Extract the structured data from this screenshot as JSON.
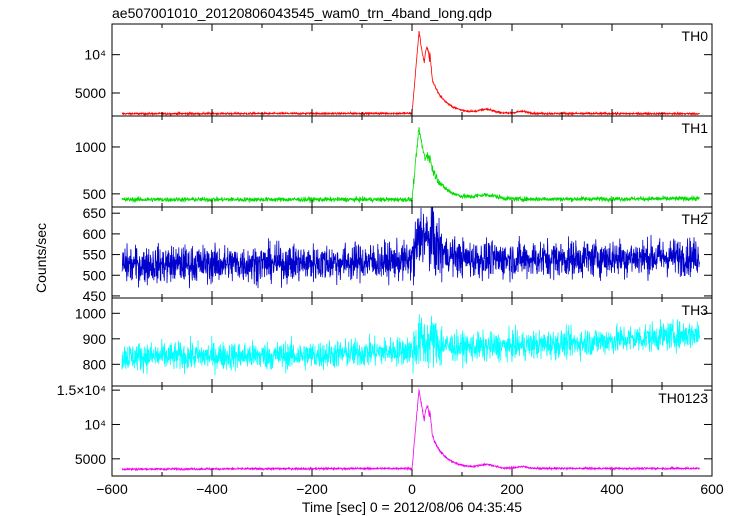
{
  "chart_data": {
    "type": "line",
    "title": "ae507001010_20120806043545_wam0_trn_4band_long.qdp",
    "xlabel": "Time [sec] 0 = 2012/08/06 04:35:45",
    "ylabel": "Counts/sec",
    "xlim": [
      -600,
      600
    ],
    "xticks": [
      -600,
      -400,
      -200,
      0,
      200,
      400,
      600
    ],
    "xtick_labels": [
      "−600",
      "−400",
      "−200",
      "0",
      "200",
      "400",
      "600"
    ],
    "data_range": [
      -580,
      575
    ],
    "panels": [
      {
        "name": "TH0",
        "color": "#ff0000",
        "ylim": [
          2000,
          14000
        ],
        "yticks": [
          5000,
          10000
        ],
        "ytick_labels": [
          "5000",
          "10⁴"
        ],
        "baseline": [
          [
            -580,
            2300
          ],
          [
            0,
            2350
          ],
          [
            575,
            2300
          ]
        ],
        "noise": 90,
        "peak": {
          "t": 14,
          "height": 10700
        },
        "tail": [
          {
            "t": 30,
            "height": 8500
          },
          {
            "t": 55,
            "height": 1400
          }
        ],
        "bumps": [
          {
            "t": 150,
            "height": 450,
            "width": 15
          },
          {
            "t": 220,
            "height": 250,
            "width": 12
          }
        ]
      },
      {
        "name": "TH1",
        "color": "#00dd00",
        "ylim": [
          360,
          1330
        ],
        "yticks": [
          500,
          1000
        ],
        "ytick_labels": [
          "500",
          "1000"
        ],
        "baseline": [
          [
            -580,
            440
          ],
          [
            0,
            440
          ],
          [
            575,
            450
          ]
        ],
        "noise": 18,
        "peak": {
          "t": 14,
          "height": 760
        },
        "tail": [
          {
            "t": 30,
            "height": 480
          },
          {
            "t": 55,
            "height": 120
          }
        ],
        "bumps": [
          {
            "t": 150,
            "height": 40,
            "width": 20
          }
        ]
      },
      {
        "name": "TH2",
        "color": "#0000cc",
        "ylim": [
          445,
          665
        ],
        "yticks": [
          450,
          500,
          550,
          600,
          650
        ],
        "ytick_labels": [
          "450",
          "500",
          "550",
          "600",
          "650"
        ],
        "baseline": [
          [
            -580,
            525
          ],
          [
            -200,
            530
          ],
          [
            0,
            535
          ],
          [
            575,
            545
          ]
        ],
        "noise": 32,
        "peak": {
          "t": 20,
          "height": 75
        },
        "tail": [
          {
            "t": 40,
            "height": 40
          },
          {
            "t": 70,
            "height": 20
          }
        ],
        "bumps": []
      },
      {
        "name": "TH3",
        "color": "#00ffff",
        "ylim": [
          715,
          1060
        ],
        "yticks": [
          800,
          900,
          1000
        ],
        "ytick_labels": [
          "800",
          "900",
          "1000"
        ],
        "baseline": [
          [
            -580,
            830
          ],
          [
            -200,
            835
          ],
          [
            0,
            855
          ],
          [
            300,
            880
          ],
          [
            575,
            920
          ]
        ],
        "noise": 40,
        "peak": {
          "t": 20,
          "height": 40
        },
        "tail": [
          {
            "t": 45,
            "height": 20
          }
        ],
        "bumps": []
      },
      {
        "name": "TH0123",
        "color": "#ee00ee",
        "ylim": [
          2500,
          15600
        ],
        "yticks": [
          5000,
          10000,
          15000
        ],
        "ytick_labels": [
          "5000",
          "10⁴",
          "1.5×10⁴"
        ],
        "baseline": [
          [
            -580,
            3500
          ],
          [
            0,
            3600
          ],
          [
            575,
            3600
          ]
        ],
        "noise": 100,
        "peak": {
          "t": 14,
          "height": 11500
        },
        "tail": [
          {
            "t": 30,
            "height": 9000
          },
          {
            "t": 55,
            "height": 1600
          }
        ],
        "bumps": [
          {
            "t": 150,
            "height": 500,
            "width": 15
          },
          {
            "t": 220,
            "height": 250,
            "width": 12
          }
        ]
      }
    ]
  }
}
